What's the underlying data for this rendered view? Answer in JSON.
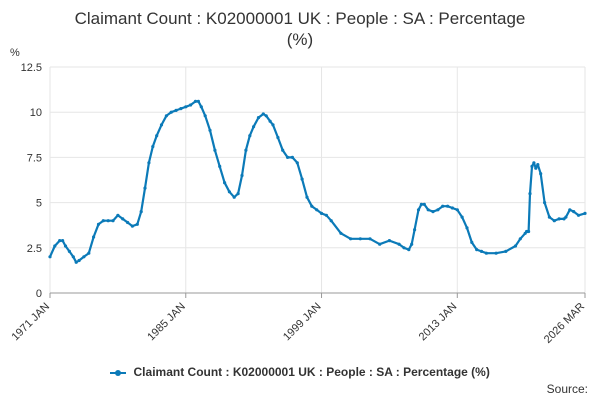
{
  "chart_data": {
    "type": "line",
    "title_line1": "Claimant Count : K02000001 UK : People : SA : Percentage",
    "title_line2": "(%)",
    "ylabel": "%",
    "ylim": [
      0,
      12.5
    ],
    "yticks": [
      "0",
      "2.5",
      "5",
      "7.5",
      "10",
      "12.5"
    ],
    "ytick_values": [
      0,
      2.5,
      5,
      7.5,
      10,
      12.5
    ],
    "xlim": [
      1971.0,
      2026.17
    ],
    "xtick_labels": [
      "1971 JAN",
      "1985 JAN",
      "1999 JAN",
      "2013 JAN",
      "2026 MAR"
    ],
    "xtick_values": [
      1971.0,
      1985.0,
      1999.0,
      2013.0,
      2026.17
    ],
    "grid": true,
    "legend_position": "bottom",
    "series": [
      {
        "name": "Claimant Count : K02000001 UK : People : SA : Percentage (%)",
        "color": "#0b7ab8",
        "x": [
          1971.0,
          1971.5,
          1972.0,
          1972.3,
          1972.6,
          1973.0,
          1973.4,
          1973.7,
          1974.0,
          1974.5,
          1975.0,
          1975.5,
          1976.0,
          1976.5,
          1977.0,
          1977.5,
          1978.0,
          1978.5,
          1979.0,
          1979.5,
          1980.0,
          1980.4,
          1980.8,
          1981.2,
          1981.6,
          1982.0,
          1982.5,
          1983.0,
          1983.5,
          1984.0,
          1984.5,
          1985.0,
          1985.5,
          1986.0,
          1986.3,
          1986.6,
          1987.0,
          1987.5,
          1988.0,
          1988.5,
          1989.0,
          1989.5,
          1990.0,
          1990.4,
          1990.8,
          1991.2,
          1991.6,
          1992.0,
          1992.5,
          1993.0,
          1993.3,
          1993.7,
          1994.0,
          1994.5,
          1995.0,
          1995.5,
          1996.0,
          1996.5,
          1997.0,
          1997.5,
          1998.0,
          1998.5,
          1999.0,
          1999.5,
          2000.0,
          2001.0,
          2002.0,
          2003.0,
          2004.0,
          2005.0,
          2006.0,
          2007.0,
          2007.5,
          2008.0,
          2008.3,
          2008.6,
          2009.0,
          2009.3,
          2009.6,
          2010.0,
          2010.5,
          2011.0,
          2011.5,
          2012.0,
          2012.5,
          2013.0,
          2013.5,
          2014.0,
          2014.5,
          2015.0,
          2015.5,
          2016.0,
          2017.0,
          2018.0,
          2019.0,
          2019.5,
          2020.0,
          2020.15,
          2020.25,
          2020.35,
          2020.5,
          2020.7,
          2020.9,
          2021.1,
          2021.3,
          2021.6,
          2022.0,
          2022.5,
          2023.0,
          2023.5,
          2024.0,
          2024.2,
          2024.6,
          2025.0,
          2025.5,
          2026.17
        ],
        "values": [
          2.0,
          2.6,
          2.9,
          2.9,
          2.6,
          2.3,
          2.0,
          1.7,
          1.8,
          2.0,
          2.2,
          3.1,
          3.8,
          4.0,
          4.0,
          4.0,
          4.3,
          4.1,
          3.9,
          3.7,
          3.8,
          4.5,
          5.8,
          7.2,
          8.1,
          8.7,
          9.3,
          9.8,
          10.0,
          10.1,
          10.2,
          10.3,
          10.4,
          10.6,
          10.6,
          10.3,
          9.8,
          9.0,
          7.9,
          7.0,
          6.1,
          5.6,
          5.3,
          5.5,
          6.5,
          7.9,
          8.7,
          9.2,
          9.7,
          9.9,
          9.8,
          9.5,
          9.3,
          8.6,
          7.9,
          7.5,
          7.5,
          7.2,
          6.3,
          5.3,
          4.8,
          4.6,
          4.4,
          4.3,
          4.0,
          3.3,
          3.0,
          3.0,
          3.0,
          2.7,
          2.9,
          2.7,
          2.5,
          2.4,
          2.7,
          3.5,
          4.6,
          4.9,
          4.9,
          4.6,
          4.5,
          4.6,
          4.8,
          4.8,
          4.7,
          4.6,
          4.2,
          3.6,
          2.8,
          2.4,
          2.3,
          2.2,
          2.2,
          2.3,
          2.6,
          3.0,
          3.3,
          3.4,
          3.4,
          3.4,
          5.5,
          7.0,
          7.2,
          6.9,
          7.1,
          6.6,
          5.0,
          4.2,
          4.0,
          4.1,
          4.1,
          4.2,
          4.6,
          4.5,
          4.3,
          4.4
        ]
      }
    ]
  },
  "legend": {
    "label": "Claimant Count : K02000001 UK : People : SA : Percentage (%)"
  },
  "footer": {
    "source_label": "Source:"
  }
}
